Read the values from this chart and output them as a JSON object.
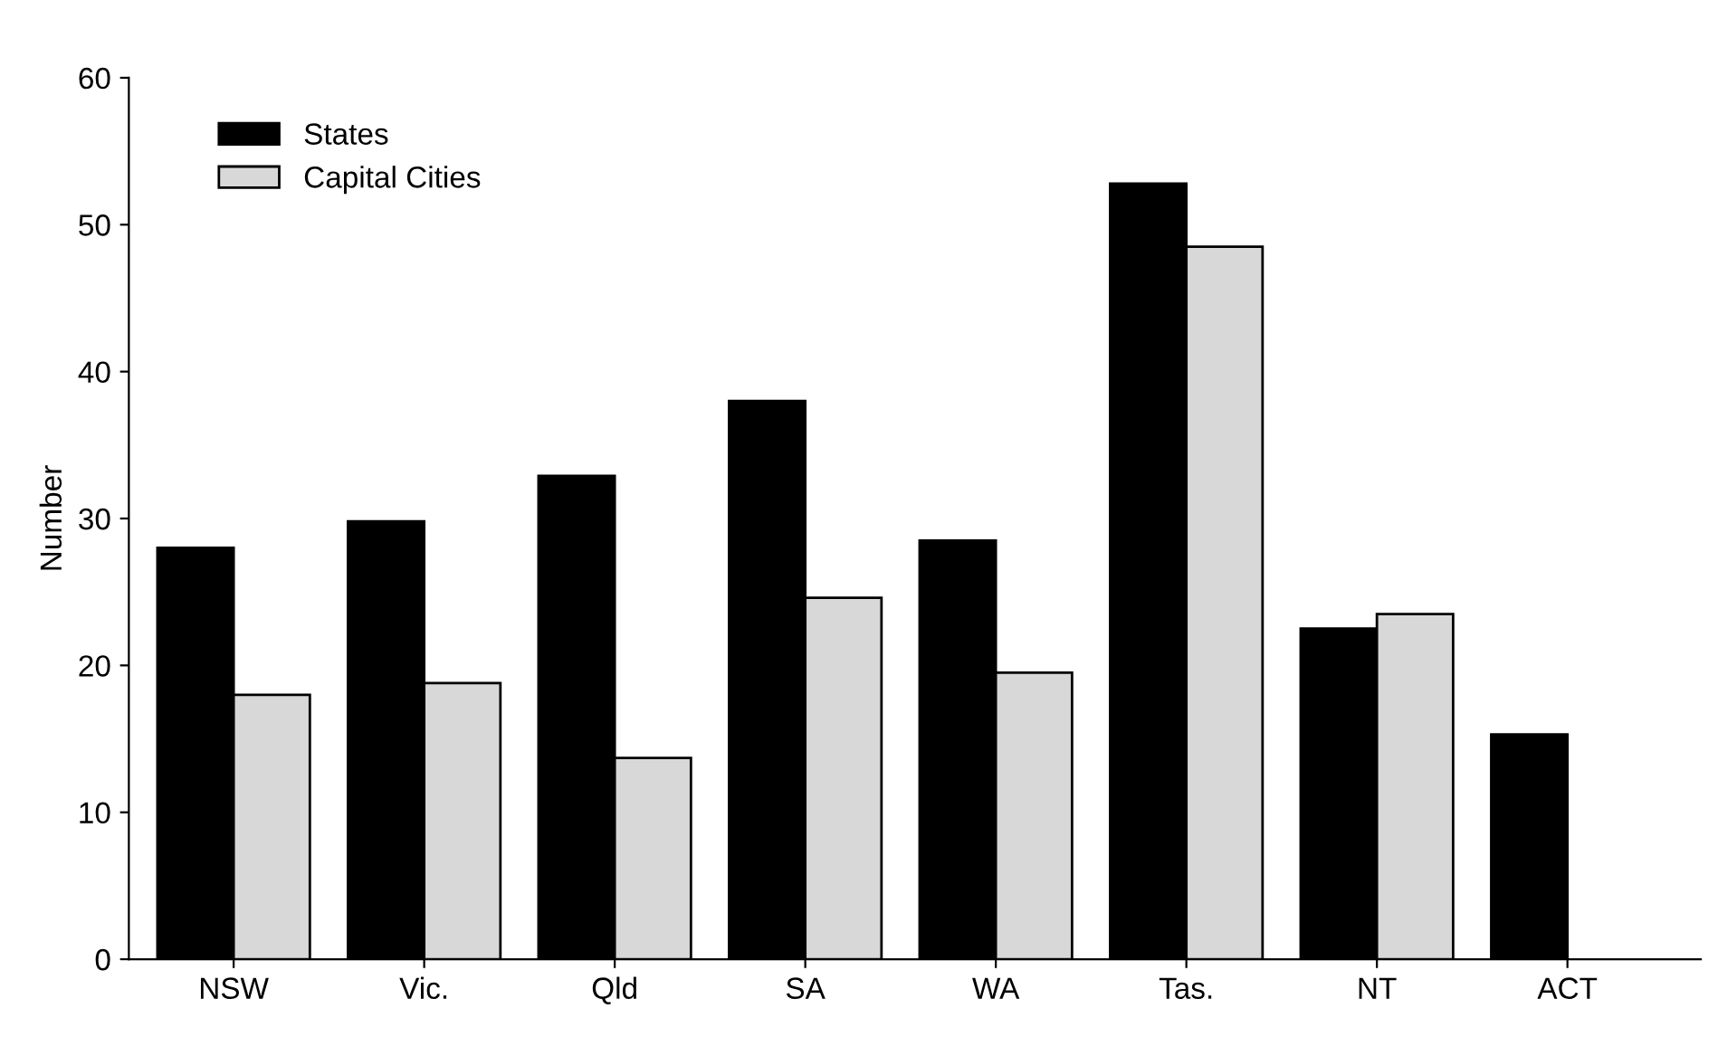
{
  "chart_data": {
    "type": "bar",
    "ylabel": "Number",
    "categories": [
      "NSW",
      "Vic.",
      "Qld",
      "SA",
      "WA",
      "Tas.",
      "NT",
      "ACT"
    ],
    "series": [
      {
        "name": "States",
        "color": "#000000",
        "values": [
          28,
          29.8,
          32.9,
          38,
          28.5,
          52.8,
          22.5,
          15.3
        ]
      },
      {
        "name": "Capital Cities",
        "color": "#d8d8d8",
        "values": [
          18,
          18.8,
          13.7,
          24.6,
          19.5,
          48.5,
          23.5,
          null
        ]
      }
    ],
    "ylim": [
      0,
      60
    ],
    "yticks": [
      0,
      10,
      20,
      30,
      40,
      50,
      60
    ],
    "grid": false,
    "legend": "top left"
  }
}
